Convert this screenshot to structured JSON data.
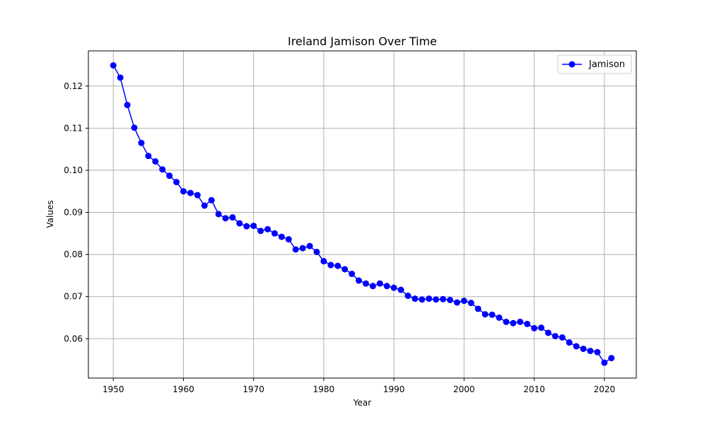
{
  "chart_data": {
    "type": "line",
    "title": "Ireland Jamison Over Time",
    "xlabel": "Year",
    "ylabel": "Values",
    "xlim": [
      1946.45,
      2024.55
    ],
    "ylim": [
      0.05065,
      0.12835
    ],
    "xticks": [
      1950,
      1960,
      1970,
      1980,
      1990,
      2000,
      2010,
      2020
    ],
    "yticks": [
      0.06,
      0.07,
      0.08,
      0.09,
      0.1,
      0.11,
      0.12
    ],
    "ytick_labels": [
      "0.06",
      "0.07",
      "0.08",
      "0.09",
      "0.10",
      "0.11",
      "0.12"
    ],
    "grid": true,
    "legend_position": "top-right",
    "series": [
      {
        "name": "Jamison",
        "color": "#0000ff",
        "marker": "circle",
        "x": [
          1950,
          1951,
          1952,
          1953,
          1954,
          1955,
          1956,
          1957,
          1958,
          1959,
          1960,
          1961,
          1962,
          1963,
          1964,
          1965,
          1966,
          1967,
          1968,
          1969,
          1970,
          1971,
          1972,
          1973,
          1974,
          1975,
          1976,
          1977,
          1978,
          1979,
          1980,
          1981,
          1982,
          1983,
          1984,
          1985,
          1986,
          1987,
          1988,
          1989,
          1990,
          1991,
          1992,
          1993,
          1994,
          1995,
          1996,
          1997,
          1998,
          1999,
          2000,
          2001,
          2002,
          2003,
          2004,
          2005,
          2006,
          2007,
          2008,
          2009,
          2010,
          2011,
          2012,
          2013,
          2014,
          2015,
          2016,
          2017,
          2018,
          2019,
          2020,
          2021
        ],
        "values": [
          0.1249,
          0.122,
          0.1155,
          0.1101,
          0.1065,
          0.1034,
          0.1021,
          0.1002,
          0.0987,
          0.0972,
          0.095,
          0.0946,
          0.0941,
          0.0916,
          0.0929,
          0.0896,
          0.0886,
          0.0888,
          0.0874,
          0.0867,
          0.0868,
          0.0856,
          0.086,
          0.085,
          0.0842,
          0.0836,
          0.0812,
          0.0815,
          0.082,
          0.0806,
          0.0784,
          0.0775,
          0.0773,
          0.0765,
          0.0754,
          0.0738,
          0.0731,
          0.0725,
          0.0731,
          0.0725,
          0.0721,
          0.0716,
          0.0702,
          0.0695,
          0.0693,
          0.0695,
          0.0693,
          0.0694,
          0.0692,
          0.0686,
          0.069,
          0.0685,
          0.0671,
          0.0658,
          0.0657,
          0.065,
          0.064,
          0.0637,
          0.064,
          0.0635,
          0.0625,
          0.0626,
          0.0614,
          0.0606,
          0.0603,
          0.0591,
          0.0582,
          0.0576,
          0.0571,
          0.0568,
          0.0543,
          0.0554
        ]
      }
    ]
  }
}
